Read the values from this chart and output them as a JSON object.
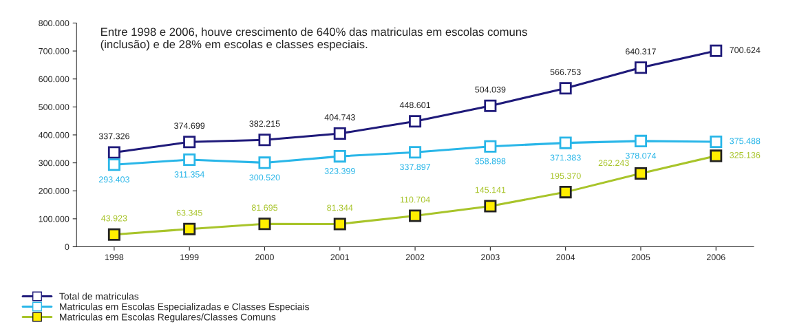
{
  "chart_data": {
    "type": "line",
    "categories": [
      "1998",
      "1999",
      "2000",
      "2001",
      "2002",
      "2003",
      "2004",
      "2005",
      "2006"
    ],
    "series": [
      {
        "name": "Total de matriculas",
        "color": "#1f1a7a",
        "values": [
          337326,
          374699,
          382215,
          404743,
          448601,
          504039,
          566753,
          640317,
          700624
        ],
        "value_labels": [
          "337.326",
          "374.699",
          "382.215",
          "404.743",
          "448.601",
          "504.039",
          "566.753",
          "640.317",
          "700.624"
        ],
        "marker": "square"
      },
      {
        "name": "Matriculas em Escolas Especializadas e Classes Especiais",
        "color": "#29b6e8",
        "values": [
          293403,
          311354,
          300520,
          323399,
          337897,
          358898,
          371383,
          378074,
          375488
        ],
        "value_labels": [
          "293.403",
          "311.354",
          "300.520",
          "323.399",
          "337.897",
          "358.898",
          "371.383",
          "378.074",
          "375.488"
        ],
        "marker": "square"
      },
      {
        "name": "Matriculas em Escolas Regulares/Classes Comuns",
        "color": "#a8c42a",
        "values": [
          43923,
          63345,
          81695,
          81344,
          110704,
          145141,
          195370,
          262243,
          325136
        ],
        "value_labels": [
          "43.923",
          "63.345",
          "81.695",
          "81.344",
          "110.704",
          "145.141",
          "195.370",
          "262.243",
          "325.136"
        ],
        "marker": "square"
      }
    ],
    "ylim": [
      0,
      800000
    ],
    "yticks": [
      {
        "value": 0,
        "label": "0"
      },
      {
        "value": 100000,
        "label": "100.000"
      },
      {
        "value": 200000,
        "label": "200.000"
      },
      {
        "value": 300000,
        "label": "300.000"
      },
      {
        "value": 400000,
        "label": "400.000"
      },
      {
        "value": 500000,
        "label": "500.000"
      },
      {
        "value": 600000,
        "label": "600.000"
      },
      {
        "value": 700000,
        "label": "700.000"
      },
      {
        "value": 800000,
        "label": "800.000"
      }
    ],
    "annotations": [
      "Entre 1998 e 2006, houve crescimento de 640% das matriculas em escolas comuns (inclusão) e de 28% em escolas e classes especiais."
    ],
    "grid": false,
    "legend": "bottom left",
    "line_style": "solid"
  }
}
